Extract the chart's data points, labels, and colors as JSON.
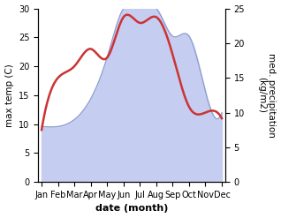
{
  "months": [
    "Jan",
    "Feb",
    "Mar",
    "Apr",
    "May",
    "Jun",
    "Jul",
    "Aug",
    "Sep",
    "Oct",
    "Nov",
    "Dec"
  ],
  "month_indices": [
    0,
    1,
    2,
    3,
    4,
    5,
    6,
    7,
    8,
    9,
    10,
    11
  ],
  "temperature": [
    9.0,
    18.0,
    20.0,
    23.0,
    21.5,
    28.5,
    27.5,
    28.5,
    22.0,
    13.0,
    12.0,
    11.0
  ],
  "precipitation": [
    8.0,
    8.0,
    9.0,
    12.0,
    18.0,
    25.0,
    25.0,
    25.0,
    21.0,
    21.0,
    13.0,
    10.0
  ],
  "temp_color": "#cc3333",
  "precip_fill_color": "#c5cdf0",
  "precip_line_color": "#8899cc",
  "ylabel_left": "max temp (C)",
  "ylabel_right": "med. precipitation\n(kg/m2)",
  "xlabel": "date (month)",
  "ylim_left": [
    0,
    30
  ],
  "ylim_right": [
    0,
    25
  ],
  "yticks_left": [
    0,
    5,
    10,
    15,
    20,
    25,
    30
  ],
  "yticks_right": [
    0,
    5,
    10,
    15,
    20,
    25
  ],
  "background_color": "#ffffff",
  "temp_linewidth": 1.8,
  "xlabel_fontsize": 8,
  "ylabel_fontsize": 7.5,
  "tick_fontsize": 7
}
